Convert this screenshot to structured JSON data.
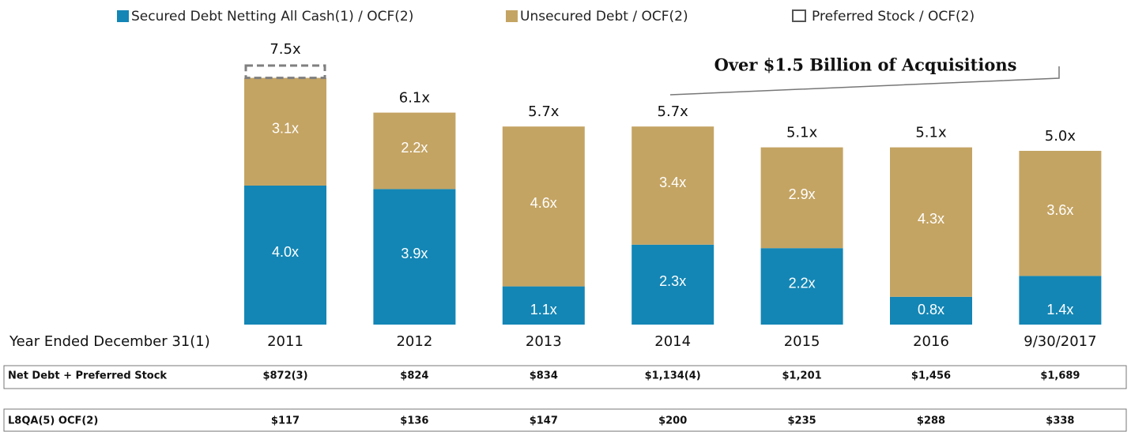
{
  "chart_data": {
    "type": "bar",
    "stacked": true,
    "categories": [
      "2011",
      "2012",
      "2013",
      "2014",
      "2015",
      "2016",
      "9/30/2017"
    ],
    "x_label": "Year Ended December 31(1)",
    "ylim": [
      0,
      8
    ],
    "series": [
      {
        "name": "Secured Debt Netting All Cash(1) / OCF(2)",
        "color": "#1386b5",
        "style": "solid",
        "values": [
          4.0,
          3.9,
          1.1,
          2.3,
          2.2,
          0.8,
          1.4
        ],
        "value_labels": [
          "4.0x",
          "3.9x",
          "1.1x",
          "2.3x",
          "2.2x",
          "0.8x",
          "1.4x"
        ]
      },
      {
        "name": "Unsecured Debt / OCF(2)",
        "color": "#c4a463",
        "style": "solid",
        "values": [
          3.1,
          2.2,
          4.6,
          3.4,
          2.9,
          4.3,
          3.6
        ],
        "value_labels": [
          "3.1x",
          "2.2x",
          "4.6x",
          "3.4x",
          "2.9x",
          "4.3x",
          "3.6x"
        ]
      },
      {
        "name": "Preferred Stock / OCF(2)",
        "color": "#7f7f7f",
        "style": "dashed",
        "values": [
          0.4,
          null,
          null,
          null,
          null,
          null,
          null
        ]
      }
    ],
    "totals": [
      7.5,
      6.1,
      5.7,
      5.7,
      5.1,
      5.1,
      5.0
    ],
    "total_labels": [
      "7.5x",
      "6.1x",
      "5.7x",
      "5.7x",
      "5.1x",
      "5.1x",
      "5.0x"
    ],
    "annotation": "Over $1.5 Billion  of Acquisitions",
    "table": {
      "rows": [
        {
          "label": "Net Debt + Preferred Stock",
          "cells": [
            "$872(3)",
            "$824",
            "$834",
            "$1,134(4)",
            "$1,201",
            "$1,456",
            "$1,689"
          ]
        },
        {
          "label": "L8QA(5) OCF(2)",
          "cells": [
            "$117",
            "$136",
            "$147",
            "$200",
            "$235",
            "$288",
            "$338"
          ]
        }
      ]
    }
  }
}
